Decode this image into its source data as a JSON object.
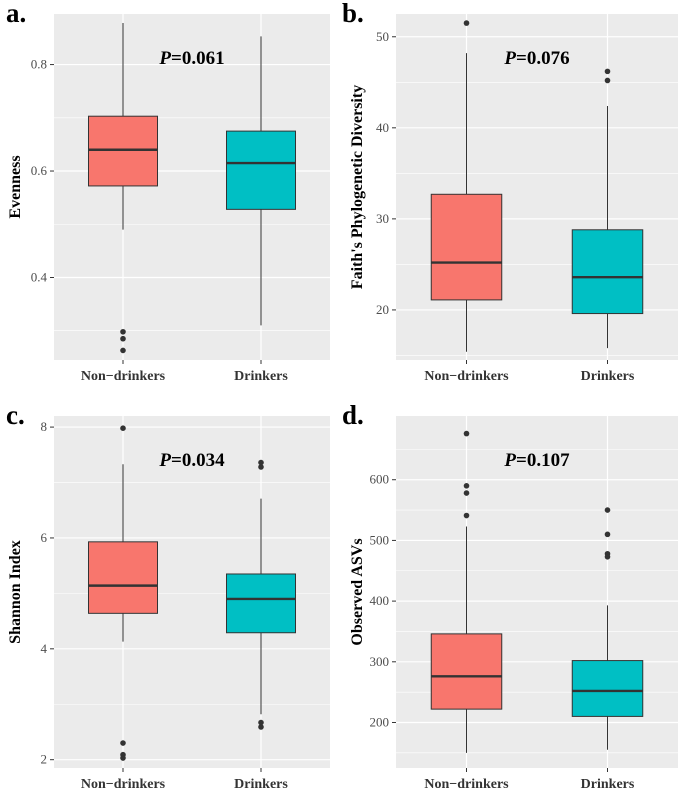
{
  "colors": {
    "panel_bg": "#ebebeb",
    "grid": "#ffffff",
    "non_drinkers": "#f8766d",
    "drinkers": "#00bfc4",
    "median": "#333333",
    "whisker": "#333333"
  },
  "chart_data": [
    {
      "panel": "a.",
      "type": "box",
      "ylabel": "Evenness",
      "p_prefix": "P",
      "p_suffix": "=0.061",
      "ylim": [
        0.245,
        0.895
      ],
      "yticks": [
        0.4,
        0.6,
        0.8
      ],
      "ytick_labels": [
        "0.4",
        "0.6",
        "0.8"
      ],
      "categories": [
        "Non−drinkers",
        "Drinkers"
      ],
      "boxes": [
        {
          "name": "Non−drinkers",
          "color": "#f8766d",
          "whisker_low": 0.49,
          "q1": 0.572,
          "median": 0.64,
          "q3": 0.703,
          "whisker_high": 0.878,
          "outliers": [
            0.298,
            0.285,
            0.263
          ]
        },
        {
          "name": "Drinkers",
          "color": "#00bfc4",
          "whisker_low": 0.31,
          "q1": 0.528,
          "median": 0.615,
          "q3": 0.675,
          "whisker_high": 0.853,
          "outliers": []
        }
      ]
    },
    {
      "panel": "b.",
      "type": "box",
      "ylabel": "Faith's Phylogenetic Diversity",
      "p_prefix": "P",
      "p_suffix": "=0.076",
      "ylim": [
        14.5,
        52.5
      ],
      "yticks": [
        20,
        30,
        40,
        50
      ],
      "ytick_labels": [
        "20",
        "30",
        "40",
        "50"
      ],
      "categories": [
        "Non−drinkers",
        "Drinkers"
      ],
      "boxes": [
        {
          "name": "Non−drinkers",
          "color": "#f8766d",
          "whisker_low": 15.4,
          "q1": 21.1,
          "median": 25.2,
          "q3": 32.7,
          "whisker_high": 48.2,
          "outliers": [
            51.5
          ]
        },
        {
          "name": "Drinkers",
          "color": "#00bfc4",
          "whisker_low": 15.8,
          "q1": 19.6,
          "median": 23.6,
          "q3": 28.8,
          "whisker_high": 42.4,
          "outliers": [
            45.2,
            46.2
          ]
        }
      ]
    },
    {
      "panel": "c.",
      "type": "box",
      "ylabel": "Shannon Index",
      "p_prefix": "P",
      "p_suffix": "=0.034",
      "ylim": [
        1.85,
        8.2
      ],
      "yticks": [
        2,
        4,
        6,
        8
      ],
      "ytick_labels": [
        "2",
        "4",
        "6",
        "8"
      ],
      "categories": [
        "Non−drinkers",
        "Drinkers"
      ],
      "boxes": [
        {
          "name": "Non−drinkers",
          "color": "#f8766d",
          "whisker_low": 4.13,
          "q1": 4.64,
          "median": 5.14,
          "q3": 5.93,
          "whisker_high": 7.33,
          "outliers": [
            7.98,
            2.3,
            2.09,
            2.03
          ]
        },
        {
          "name": "Drinkers",
          "color": "#00bfc4",
          "whisker_low": 2.82,
          "q1": 4.29,
          "median": 4.9,
          "q3": 5.35,
          "whisker_high": 6.71,
          "outliers": [
            7.36,
            7.28,
            2.67,
            2.59
          ]
        }
      ]
    },
    {
      "panel": "d.",
      "type": "box",
      "ylabel": "Observed ASVs",
      "p_prefix": "P",
      "p_suffix": "=0.107",
      "ylim": [
        125,
        705
      ],
      "yticks": [
        200,
        300,
        400,
        500,
        600
      ],
      "ytick_labels": [
        "200",
        "300",
        "400",
        "500",
        "600"
      ],
      "categories": [
        "Non−drinkers",
        "Drinkers"
      ],
      "boxes": [
        {
          "name": "Non−drinkers",
          "color": "#f8766d",
          "whisker_low": 150,
          "q1": 222,
          "median": 276,
          "q3": 346,
          "whisker_high": 523,
          "outliers": [
            676,
            590,
            578,
            541
          ]
        },
        {
          "name": "Drinkers",
          "color": "#00bfc4",
          "whisker_low": 155,
          "q1": 210,
          "median": 252,
          "q3": 302,
          "whisker_high": 393,
          "outliers": [
            550,
            510,
            478,
            473
          ]
        }
      ]
    }
  ]
}
